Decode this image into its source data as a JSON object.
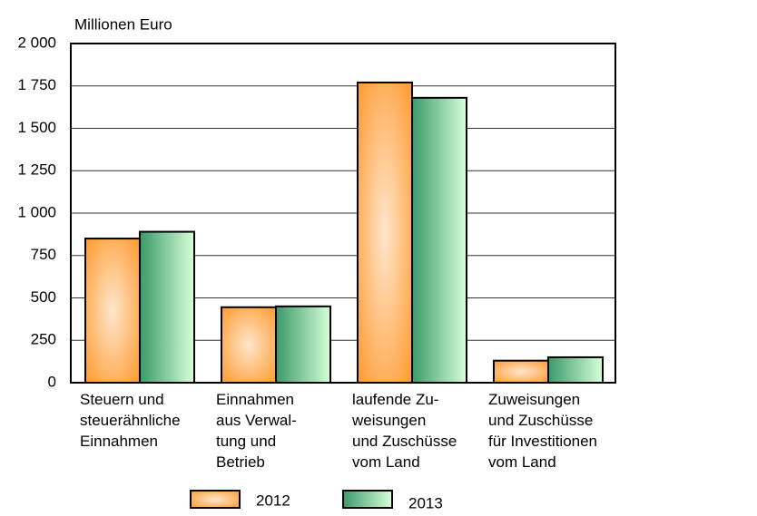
{
  "chart_data": {
    "type": "bar",
    "y_axis_label": "Millionen Euro",
    "categories": [
      [
        "Steuern und",
        "steuerähnliche",
        "Einnahmen"
      ],
      [
        "Einnahmen",
        "aus Verwal-",
        "tung und",
        "Betrieb"
      ],
      [
        "laufende Zu-",
        "weisungen",
        "und Zuschüsse",
        "vom Land"
      ],
      [
        "Zuweisungen",
        "und Zuschüsse",
        "für Investitionen",
        "vom Land"
      ]
    ],
    "series": [
      {
        "name": "2012",
        "color": "#ff9a2e",
        "values": [
          850,
          445,
          1770,
          130
        ]
      },
      {
        "name": "2013",
        "color": "#3a9a6a",
        "values": [
          890,
          450,
          1680,
          150
        ]
      }
    ],
    "ylim": [
      0,
      2000
    ],
    "yticks": [
      0,
      250,
      500,
      750,
      {
        "value": 1000,
        "label": "1 000"
      },
      {
        "value": 1250,
        "label": "1 250"
      },
      {
        "value": 1500,
        "label": "1 500"
      },
      {
        "value": 1750,
        "label": "1 750"
      },
      {
        "value": 2000,
        "label": "2 000"
      }
    ],
    "grid": true
  }
}
